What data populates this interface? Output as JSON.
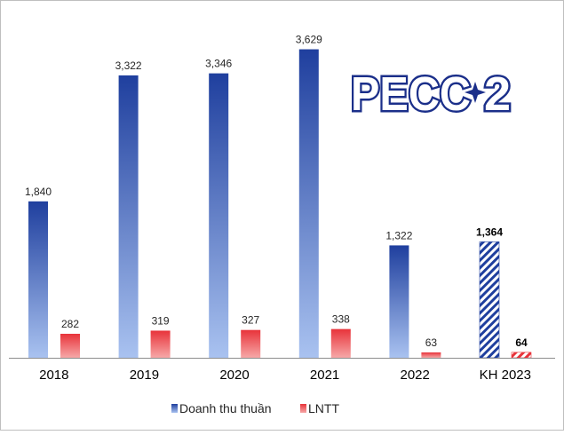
{
  "chart_data": {
    "type": "bar",
    "title": "",
    "xlabel": "",
    "ylabel": "",
    "ylim": [
      0,
      4000
    ],
    "grid": false,
    "legend": "bottom",
    "categories": [
      "2018",
      "2019",
      "2020",
      "2021",
      "2022",
      "KH 2023"
    ],
    "series": [
      {
        "name": "Doanh thu thuần",
        "values": [
          1840,
          3322,
          3346,
          3629,
          1322,
          1364
        ],
        "labels": [
          "1,840",
          "3,322",
          "3,346",
          "3,629",
          "1,322",
          "1,364"
        ],
        "color": "#1f3f9e",
        "color_light": "#a9c2f0"
      },
      {
        "name": "LNTT",
        "values": [
          282,
          319,
          327,
          338,
          63,
          64
        ],
        "labels": [
          "282",
          "319",
          "327",
          "338",
          "63",
          "64"
        ],
        "color": "#e8333a",
        "color_light": "#f6a8a8"
      }
    ],
    "planned_category": "KH 2023",
    "logo_text": "PECC2",
    "logo_color": "#1b2f8a"
  }
}
